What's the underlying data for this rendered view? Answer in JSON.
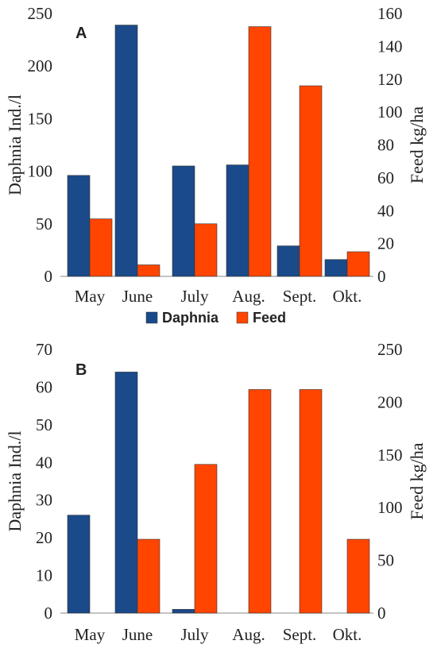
{
  "colors": {
    "daphnia": "#1a4a8a",
    "feed": "#ff4500"
  },
  "chart_data": [
    {
      "type": "bar",
      "panel_label": "A",
      "categories": [
        "May",
        "June",
        "July",
        "Aug.",
        "Sept.",
        "Okt."
      ],
      "series": [
        {
          "name": "Daphnia",
          "axis": "left",
          "values": [
            96,
            239,
            105,
            106,
            29,
            16
          ]
        },
        {
          "name": "Feed",
          "axis": "right",
          "values": [
            35,
            7,
            32,
            152,
            116,
            15
          ]
        }
      ],
      "ylabel_left": "Daphnia Ind./l",
      "ylabel_right": "Feed kg/ha",
      "ylim_left": [
        0,
        250
      ],
      "ylim_right": [
        0,
        160
      ],
      "yticks_left": [
        "0",
        "50",
        "100",
        "150",
        "200",
        "250"
      ],
      "yticks_right": [
        "0",
        "20",
        "40",
        "60",
        "80",
        "100",
        "120",
        "140",
        "160"
      ],
      "legend": [
        "Daphnia",
        "Feed"
      ],
      "legend_position": "bottom"
    },
    {
      "type": "bar",
      "panel_label": "B",
      "categories": [
        "May",
        "June",
        "July",
        "Aug.",
        "Sept.",
        "Okt."
      ],
      "series": [
        {
          "name": "Daphnia",
          "axis": "left",
          "values": [
            26,
            64,
            1,
            0,
            0,
            0
          ]
        },
        {
          "name": "Feed",
          "axis": "right",
          "values": [
            0,
            70,
            141,
            212,
            212,
            70
          ]
        }
      ],
      "ylabel_left": "Daphnia Ind./l",
      "ylabel_right": "Feed kg/ha",
      "ylim_left": [
        0,
        70
      ],
      "ylim_right": [
        0,
        250
      ],
      "yticks_left": [
        "0",
        "10",
        "20",
        "30",
        "40",
        "50",
        "60",
        "70"
      ],
      "yticks_right": [
        "0",
        "50",
        "100",
        "150",
        "200",
        "250"
      ]
    }
  ]
}
